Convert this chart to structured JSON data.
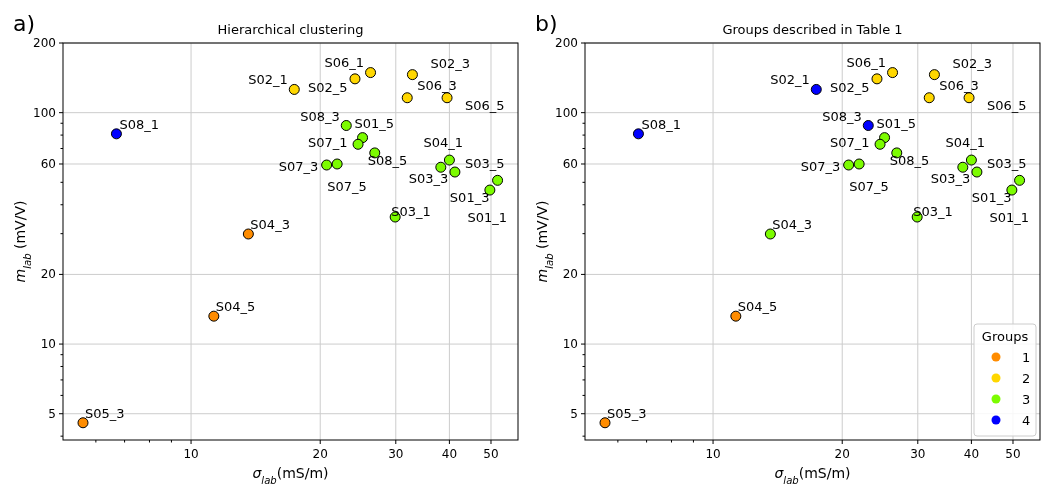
{
  "chart_data": [
    {
      "type": "scatter",
      "title": "Hierarchical clustering",
      "xlabel": "σ$_{lab}$(mS/m)",
      "ylabel": "m$_{lab}$ (mV/V)",
      "log": "xy",
      "grid": true,
      "legend": false,
      "marker": "circle",
      "xlim": [
        5.03,
        57.8
      ],
      "ylim": [
        3.85,
        200
      ],
      "xticks": [
        {
          "value": 6,
          "label": null
        },
        {
          "value": 7,
          "label": null
        },
        {
          "value": 8,
          "label": null
        },
        {
          "value": 9,
          "label": null
        },
        10,
        20,
        30,
        40,
        50
      ],
      "yticks": [
        {
          "value": 4,
          "label": null
        },
        5,
        {
          "value": 6,
          "label": null
        },
        {
          "value": 7,
          "label": null
        },
        {
          "value": 8,
          "label": null
        },
        {
          "value": 9,
          "label": null
        },
        10,
        20,
        {
          "value": 30,
          "label": null
        },
        {
          "value": 40,
          "label": null
        },
        {
          "value": 50,
          "label": null
        },
        60,
        {
          "value": 70,
          "label": null
        },
        {
          "value": 80,
          "label": null
        },
        {
          "value": 90,
          "label": null
        },
        100,
        200
      ],
      "series": [
        {
          "color": "#ff8c00",
          "x": [
            13.6,
            11.3,
            5.6
          ],
          "values": [
            29.9,
            13.2,
            4.57
          ]
        },
        {
          "color": "#ffd700",
          "x": [
            17.4,
            24.1,
            26.2,
            32.8,
            31.9,
            39.5
          ],
          "values": [
            126,
            140,
            149,
            146,
            116,
            116
          ]
        },
        {
          "color": "#7cfc00",
          "x": [
            23.0,
            25.1,
            24.5,
            26.8,
            20.7,
            21.9,
            40.0,
            38.2,
            41.2,
            49.7,
            51.8,
            29.9
          ],
          "values": [
            88,
            78,
            73,
            67,
            59.4,
            60,
            62.4,
            58.1,
            55.4,
            46.3,
            51,
            35.4
          ]
        },
        {
          "color": "#0000ff",
          "x": [
            6.7
          ],
          "values": [
            81
          ]
        }
      ],
      "annotations": [
        "a)",
        {
          "text": "S08_1",
          "x": 6.7,
          "y": 81
        },
        {
          "text": "S02_1",
          "x": 17.4,
          "y": 126
        },
        {
          "text": "S02_5",
          "x": 24.1,
          "y": 140
        },
        {
          "text": "S06_1",
          "x": 26.2,
          "y": 149
        },
        {
          "text": "S02_3",
          "x": 32.8,
          "y": 146
        },
        {
          "text": "S06_3",
          "x": 31.9,
          "y": 116
        },
        {
          "text": "S06_5",
          "x": 39.5,
          "y": 116
        },
        {
          "text": "S08_3",
          "x": 23.0,
          "y": 88
        },
        {
          "text": "S01_5",
          "x": 25.1,
          "y": 78
        },
        {
          "text": "S07_1",
          "x": 24.5,
          "y": 73
        },
        {
          "text": "S08_5",
          "x": 26.8,
          "y": 67
        },
        {
          "text": "S07_3",
          "x": 20.7,
          "y": 59.4
        },
        {
          "text": "S07_5",
          "x": 21.9,
          "y": 60
        },
        {
          "text": "S04_1",
          "x": 40.0,
          "y": 62.4
        },
        {
          "text": "S03_3",
          "x": 38.2,
          "y": 58.1
        },
        {
          "text": "S03_5",
          "x": 41.2,
          "y": 55.4
        },
        {
          "text": "S01_3",
          "x": 49.7,
          "y": 46.3
        },
        {
          "text": "S01_1",
          "x": 51.8,
          "y": 51
        },
        {
          "text": "S03_1",
          "x": 29.9,
          "y": 35.4
        },
        {
          "text": "S04_3",
          "x": 13.6,
          "y": 29.9
        },
        {
          "text": "S04_5",
          "x": 11.3,
          "y": 13.2
        },
        {
          "text": "S05_3",
          "x": 5.6,
          "y": 4.57
        }
      ]
    },
    {
      "type": "scatter",
      "title": "Groups described in Table 1",
      "xlabel": "σ$_{lab}$(mS/m)",
      "ylabel": "m$_{lab}$ (mV/V)",
      "log": "xy",
      "grid": true,
      "legend": "bottom right",
      "legend_title": "Groups",
      "marker": "circle",
      "xlim": [
        5.03,
        57.8
      ],
      "ylim": [
        3.85,
        200
      ],
      "xticks": [
        {
          "value": 6,
          "label": null
        },
        {
          "value": 7,
          "label": null
        },
        {
          "value": 8,
          "label": null
        },
        {
          "value": 9,
          "label": null
        },
        10,
        20,
        30,
        40,
        50
      ],
      "yticks": [
        {
          "value": 4,
          "label": null
        },
        5,
        {
          "value": 6,
          "label": null
        },
        {
          "value": 7,
          "label": null
        },
        {
          "value": 8,
          "label": null
        },
        {
          "value": 9,
          "label": null
        },
        10,
        20,
        {
          "value": 30,
          "label": null
        },
        {
          "value": 40,
          "label": null
        },
        {
          "value": 50,
          "label": null
        },
        60,
        {
          "value": 70,
          "label": null
        },
        {
          "value": 80,
          "label": null
        },
        {
          "value": 90,
          "label": null
        },
        100,
        200
      ],
      "series": [
        {
          "name": "1",
          "color": "#ff8c00",
          "x": [
            11.3,
            5.6
          ],
          "values": [
            13.2,
            4.57
          ]
        },
        {
          "name": "2",
          "color": "#ffd700",
          "x": [
            24.1,
            26.2,
            32.8,
            31.9,
            39.5
          ],
          "values": [
            140,
            149,
            146,
            116,
            116
          ]
        },
        {
          "name": "3",
          "color": "#7cfc00",
          "x": [
            25.1,
            24.5,
            26.8,
            20.7,
            21.9,
            40.0,
            38.2,
            41.2,
            49.7,
            51.8,
            29.9,
            13.6
          ],
          "values": [
            78,
            73,
            67,
            59.4,
            60,
            62.4,
            58.1,
            55.4,
            46.3,
            51,
            35.4,
            29.9
          ]
        },
        {
          "name": "4",
          "color": "#0000ff",
          "x": [
            6.7,
            17.4,
            23.0
          ],
          "values": [
            81,
            126,
            88
          ]
        }
      ],
      "annotations": [
        "b)",
        {
          "text": "S08_1",
          "x": 6.7,
          "y": 81
        },
        {
          "text": "S02_1",
          "x": 17.4,
          "y": 126
        },
        {
          "text": "S02_5",
          "x": 24.1,
          "y": 140
        },
        {
          "text": "S06_1",
          "x": 26.2,
          "y": 149
        },
        {
          "text": "S02_3",
          "x": 32.8,
          "y": 146
        },
        {
          "text": "S06_3",
          "x": 31.9,
          "y": 116
        },
        {
          "text": "S06_5",
          "x": 39.5,
          "y": 116
        },
        {
          "text": "S08_3",
          "x": 23.0,
          "y": 88
        },
        {
          "text": "S01_5",
          "x": 25.1,
          "y": 78
        },
        {
          "text": "S07_1",
          "x": 24.5,
          "y": 73
        },
        {
          "text": "S08_5",
          "x": 26.8,
          "y": 67
        },
        {
          "text": "S07_3",
          "x": 20.7,
          "y": 59.4
        },
        {
          "text": "S07_5",
          "x": 21.9,
          "y": 60
        },
        {
          "text": "S04_1",
          "x": 40.0,
          "y": 62.4
        },
        {
          "text": "S03_3",
          "x": 38.2,
          "y": 58.1
        },
        {
          "text": "S03_5",
          "x": 41.2,
          "y": 55.4
        },
        {
          "text": "S01_3",
          "x": 49.7,
          "y": 46.3
        },
        {
          "text": "S01_1",
          "x": 51.8,
          "y": 51
        },
        {
          "text": "S03_1",
          "x": 29.9,
          "y": 35.4
        },
        {
          "text": "S04_3",
          "x": 13.6,
          "y": 29.9
        },
        {
          "text": "S04_5",
          "x": 11.3,
          "y": 13.2
        },
        {
          "text": "S05_3",
          "x": 5.6,
          "y": 4.57
        }
      ]
    }
  ]
}
